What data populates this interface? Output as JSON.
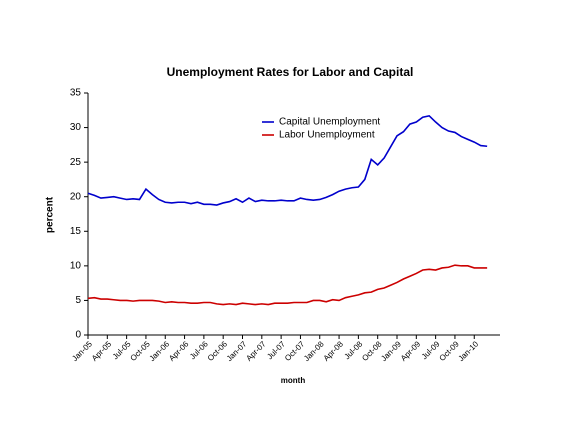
{
  "chart_data": {
    "type": "line",
    "title": "Unemployment Rates for Labor and Capital",
    "x_label": "month",
    "y_label": "percent",
    "categories": [
      "Jan-05",
      null,
      null,
      "Apr-05",
      null,
      null,
      "Jul-05",
      null,
      null,
      "Oct-05",
      null,
      null,
      "Jan-06",
      null,
      null,
      "Apr-06",
      null,
      null,
      "Jul-06",
      null,
      null,
      "Oct-06",
      null,
      null,
      "Jan-07",
      null,
      null,
      "Apr-07",
      null,
      null,
      "Jul-07",
      null,
      null,
      "Oct-07",
      null,
      null,
      "Jan-08",
      null,
      null,
      "Apr-08",
      null,
      null,
      "Jul-08",
      null,
      null,
      "Oct-08",
      null,
      null,
      "Jan-09",
      null,
      null,
      "Apr-09",
      null,
      null,
      "Jul-09",
      null,
      null,
      "Oct-09",
      null,
      null,
      "Jan-10",
      null,
      null
    ],
    "series": [
      {
        "name": "Capital Unemployment",
        "color": "#0000cc",
        "values": [
          20.5,
          20.2,
          19.8,
          19.9,
          20.0,
          19.8,
          19.6,
          19.7,
          19.6,
          21.1,
          20.3,
          19.6,
          19.2,
          19.1,
          19.2,
          19.2,
          19.0,
          19.2,
          18.9,
          18.9,
          18.8,
          19.1,
          19.3,
          19.7,
          19.2,
          19.8,
          19.3,
          19.5,
          19.4,
          19.4,
          19.5,
          19.4,
          19.4,
          19.8,
          19.6,
          19.5,
          19.6,
          19.9,
          20.3,
          20.8,
          21.1,
          21.3,
          21.4,
          22.5,
          25.4,
          24.6,
          25.6,
          27.2,
          28.8,
          29.4,
          30.5,
          30.8,
          31.5,
          31.7,
          30.8,
          30.0,
          29.5,
          29.3,
          28.7,
          28.3,
          27.9,
          27.4,
          27.3
        ]
      },
      {
        "name": "Labor Unemployment",
        "color": "#cc0000",
        "values": [
          5.3,
          5.4,
          5.2,
          5.2,
          5.1,
          5.0,
          5.0,
          4.9,
          5.0,
          5.0,
          5.0,
          4.9,
          4.7,
          4.8,
          4.7,
          4.7,
          4.6,
          4.6,
          4.7,
          4.7,
          4.5,
          4.4,
          4.5,
          4.4,
          4.6,
          4.5,
          4.4,
          4.5,
          4.4,
          4.6,
          4.6,
          4.6,
          4.7,
          4.7,
          4.7,
          5.0,
          5.0,
          4.8,
          5.1,
          5.0,
          5.4,
          5.6,
          5.8,
          6.1,
          6.2,
          6.6,
          6.8,
          7.2,
          7.6,
          8.1,
          8.5,
          8.9,
          9.4,
          9.5,
          9.4,
          9.7,
          9.8,
          10.1,
          10.0,
          10.0,
          9.7,
          9.7,
          9.7
        ]
      }
    ],
    "ylim": [
      0,
      35
    ],
    "yticks": [
      0,
      5,
      10,
      15,
      20,
      25,
      30,
      35
    ],
    "grid": false
  }
}
